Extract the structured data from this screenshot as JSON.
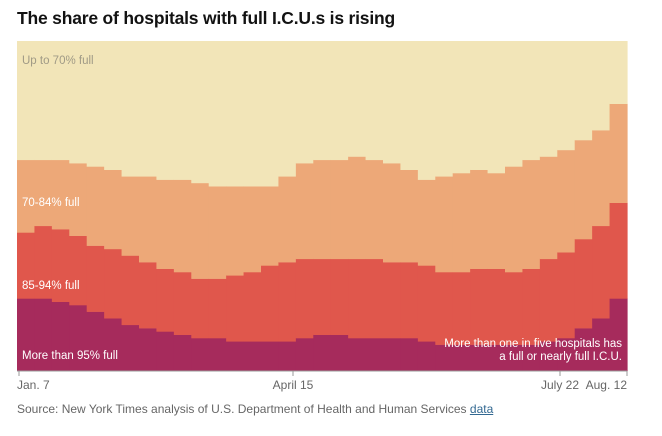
{
  "title": "The share of hospitals with full I.C.U.s is rising",
  "source": {
    "text": "Source: New York Times analysis of U.S. Department of Health and Human Services",
    "link_label": "data"
  },
  "chart_data": {
    "type": "area",
    "stacked": true,
    "x_ticks": [
      "Jan. 7",
      "April 15",
      "July 22",
      "Aug. 12"
    ],
    "ylim": [
      0,
      100
    ],
    "y_unit": "percent of hospitals",
    "grid": false,
    "annotation": [
      "More than one in five hospitals has",
      "a full or nearly full I.C.U."
    ],
    "series": [
      {
        "name": "More than 95% full",
        "color": "#a62b5c",
        "values": [
          22,
          22,
          21,
          20,
          18,
          16,
          14,
          13,
          12,
          11,
          10,
          10,
          9,
          9,
          9,
          9,
          10,
          11,
          11,
          10,
          10,
          10,
          10,
          9,
          8,
          8,
          8,
          8,
          8,
          8,
          9,
          10,
          13,
          16,
          22
        ]
      },
      {
        "name": "85-94% full",
        "color": "#e0574c",
        "values": [
          20,
          22,
          22,
          21,
          20,
          21,
          21,
          20,
          19,
          19,
          18,
          18,
          20,
          21,
          23,
          24,
          24,
          23,
          23,
          24,
          24,
          23,
          23,
          23,
          22,
          22,
          23,
          23,
          22,
          23,
          25,
          26,
          27,
          28,
          29
        ]
      },
      {
        "name": "70-84% full",
        "color": "#eda878",
        "values": [
          22,
          20,
          21,
          22,
          24,
          24,
          24,
          26,
          27,
          28,
          29,
          28,
          27,
          26,
          24,
          26,
          29,
          30,
          30,
          31,
          30,
          30,
          28,
          26,
          29,
          30,
          30,
          29,
          32,
          33,
          31,
          31,
          30,
          29,
          30
        ]
      },
      {
        "name": "Up to 70% full",
        "color": "#f2e5b8",
        "values": [
          36,
          36,
          36,
          37,
          38,
          39,
          41,
          41,
          42,
          42,
          43,
          44,
          44,
          44,
          44,
          41,
          37,
          36,
          36,
          35,
          36,
          37,
          39,
          42,
          41,
          40,
          39,
          40,
          38,
          36,
          35,
          33,
          30,
          27,
          19
        ]
      }
    ]
  }
}
